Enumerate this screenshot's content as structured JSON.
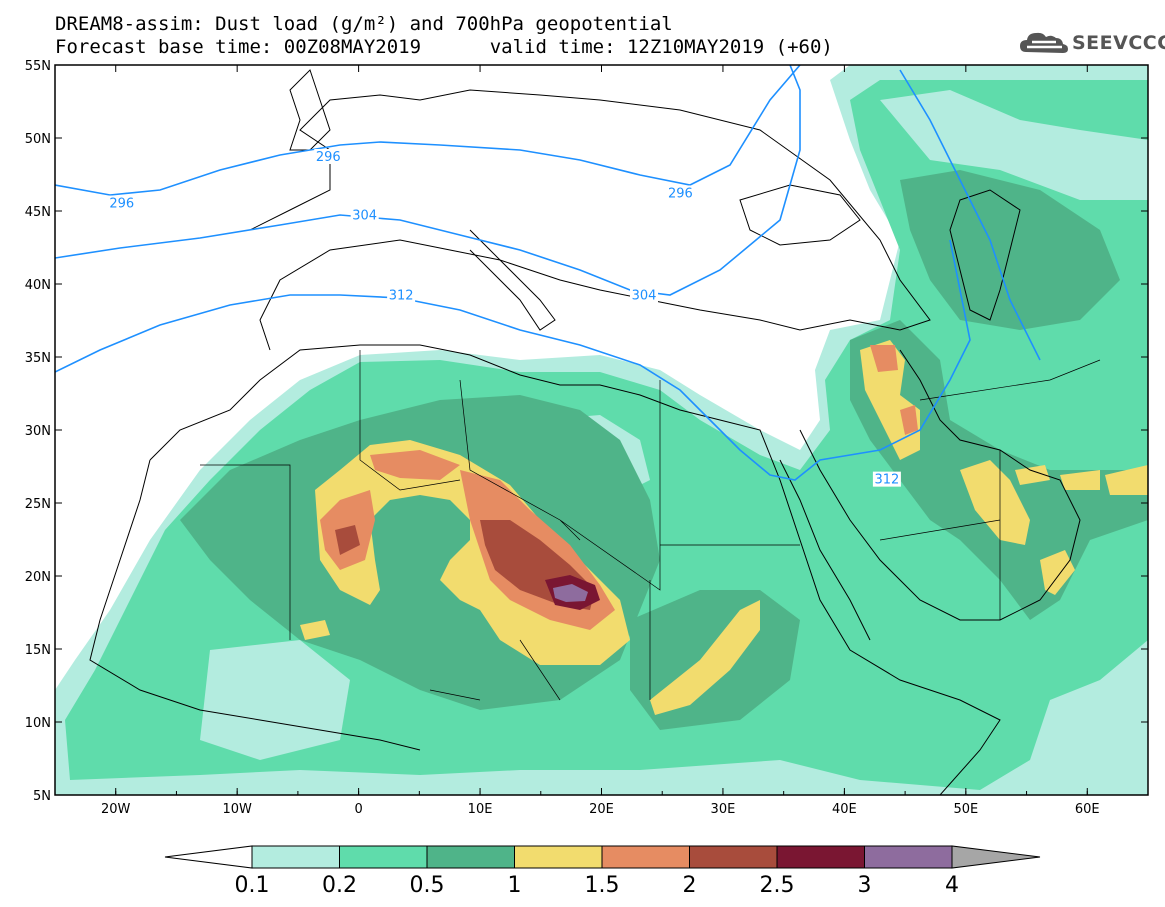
{
  "title": {
    "line1": "DREAM8-assim: Dust load (g/m²) and 700hPa geopotential",
    "line2_left": "Forecast base time: 00Z08MAY2019",
    "line2_right": "valid time: 12Z10MAY2019 (+60)"
  },
  "logo": {
    "text": "SEEVCCC",
    "icon": "cloud-icon"
  },
  "map": {
    "lon_range": [
      -25,
      65
    ],
    "lat_range": [
      5,
      55
    ],
    "lon_ticks": [
      "20W",
      "10W",
      "0",
      "10E",
      "20E",
      "30E",
      "40E",
      "50E",
      "60E"
    ],
    "lat_ticks": [
      "55N",
      "50N",
      "45N",
      "40N",
      "35N",
      "30N",
      "25N",
      "20N",
      "15N",
      "10N",
      "5N"
    ]
  },
  "contours": {
    "color": "#1e90ff",
    "labels": [
      {
        "text": "296",
        "lon": -2.5,
        "lat": 48.7
      },
      {
        "text": "296",
        "lon": -19.5,
        "lat": 45.5
      },
      {
        "text": "296",
        "lon": 26.5,
        "lat": 46.2
      },
      {
        "text": "304",
        "lon": 0.5,
        "lat": 44.7
      },
      {
        "text": "304",
        "lon": 23.5,
        "lat": 39.2
      },
      {
        "text": "312",
        "lon": 3.5,
        "lat": 39.2
      },
      {
        "text": "312",
        "lon": 43.5,
        "lat": 26.6
      }
    ]
  },
  "colorbar": {
    "labels": [
      "0.1",
      "0.2",
      "0.5",
      "1",
      "1.5",
      "2",
      "2.5",
      "3",
      "4"
    ],
    "colors": [
      "#b3ecdf",
      "#5fdcab",
      "#4fb489",
      "#f2dc6e",
      "#e68c62",
      "#a84c3c",
      "#7a1632",
      "#8e6c9e"
    ],
    "under_color": "#ffffff",
    "over_color": "#a6a6a6"
  }
}
